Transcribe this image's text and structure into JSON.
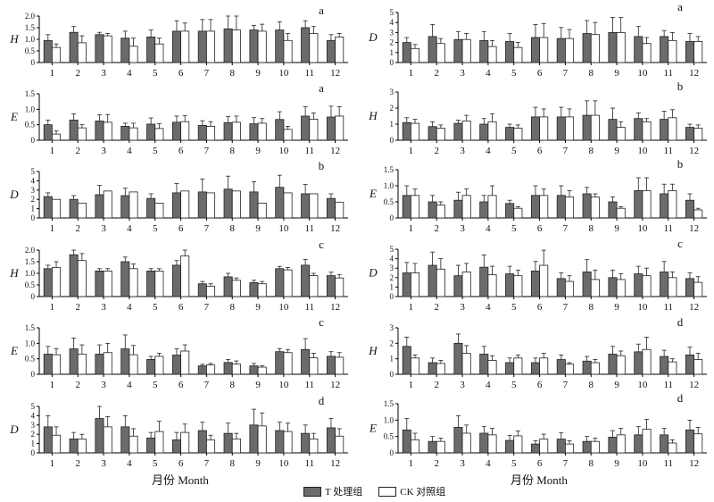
{
  "x_axis_title": "月份 Month",
  "legend": {
    "treatment_label": "T 处理组",
    "control_label": "CK 对照组",
    "treatment_color": "#6b6b6b",
    "control_color": "#ffffff"
  },
  "chart_data": [
    {
      "type": "bar",
      "tag": "a",
      "ylabel": "H",
      "ylim": [
        0,
        2.0
      ],
      "yticks": [
        "0",
        "0.5",
        "1.0",
        "1.5",
        "2.0"
      ],
      "categories": [
        "1",
        "2",
        "3",
        "4",
        "5",
        "6",
        "7",
        "8",
        "9",
        "10",
        "11",
        "12"
      ],
      "series": [
        {
          "name": "T 处理组",
          "values": [
            0.95,
            1.3,
            1.2,
            1.05,
            1.1,
            1.35,
            1.35,
            1.45,
            1.4,
            1.4,
            1.5,
            0.95
          ],
          "errors": [
            0.25,
            0.25,
            0.1,
            0.3,
            0.3,
            0.45,
            0.5,
            0.6,
            0.2,
            0.35,
            0.3,
            0.25
          ]
        },
        {
          "name": "CK 对照组",
          "values": [
            0.65,
            0.85,
            1.15,
            0.7,
            0.8,
            1.35,
            1.35,
            1.4,
            1.35,
            0.95,
            1.25,
            1.1
          ],
          "errors": [
            0.15,
            0.3,
            0.1,
            0.35,
            0.25,
            0.35,
            0.5,
            0.6,
            0.3,
            0.3,
            0.3,
            0.15
          ]
        }
      ]
    },
    {
      "type": "bar",
      "tag": "a",
      "ylabel": "D",
      "ylim": [
        0,
        5
      ],
      "yticks": [
        "0",
        "1",
        "2",
        "3",
        "4",
        "5"
      ],
      "categories": [
        "1",
        "2",
        "3",
        "4",
        "5",
        "6",
        "7",
        "8",
        "9",
        "10",
        "11",
        "12"
      ],
      "series": [
        {
          "name": "T 处理组",
          "values": [
            2.0,
            2.6,
            2.3,
            2.2,
            2.1,
            2.5,
            2.4,
            2.9,
            3.0,
            2.6,
            2.6,
            2.1
          ],
          "errors": [
            0.5,
            1.2,
            0.8,
            0.9,
            0.8,
            1.3,
            1.1,
            1.3,
            1.5,
            1.0,
            0.6,
            0.8
          ]
        },
        {
          "name": "CK 对照组",
          "values": [
            1.4,
            1.9,
            2.3,
            1.6,
            1.5,
            2.5,
            2.4,
            2.8,
            3.0,
            1.9,
            2.2,
            2.1
          ],
          "errors": [
            0.4,
            0.5,
            0.6,
            0.6,
            0.5,
            1.4,
            0.9,
            1.2,
            1.5,
            0.6,
            0.8,
            0.5
          ]
        }
      ]
    },
    {
      "type": "bar",
      "tag": "a",
      "ylabel": "E",
      "ylim": [
        0,
        1.5
      ],
      "yticks": [
        "0",
        "0.5",
        "1.0",
        "1.5"
      ],
      "categories": [
        "1",
        "2",
        "3",
        "4",
        "5",
        "6",
        "7",
        "8",
        "9",
        "10",
        "11",
        "12"
      ],
      "series": [
        {
          "name": "T 处理组",
          "values": [
            0.5,
            0.65,
            0.62,
            0.45,
            0.52,
            0.58,
            0.48,
            0.57,
            0.53,
            0.67,
            0.78,
            0.75
          ],
          "errors": [
            0.15,
            0.2,
            0.2,
            0.1,
            0.2,
            0.2,
            0.15,
            0.2,
            0.2,
            0.25,
            0.3,
            0.35
          ]
        },
        {
          "name": "CK 对照组",
          "values": [
            0.2,
            0.4,
            0.58,
            0.4,
            0.38,
            0.6,
            0.45,
            0.58,
            0.55,
            0.35,
            0.68,
            0.78
          ],
          "errors": [
            0.1,
            0.1,
            0.25,
            0.15,
            0.15,
            0.2,
            0.15,
            0.2,
            0.15,
            0.1,
            0.2,
            0.3
          ]
        }
      ]
    },
    {
      "type": "bar",
      "tag": "b",
      "ylabel": "H",
      "ylim": [
        0,
        3
      ],
      "yticks": [
        "0",
        "1",
        "2",
        "3"
      ],
      "categories": [
        "1",
        "2",
        "3",
        "4",
        "5",
        "6",
        "7",
        "8",
        "9",
        "10",
        "11",
        "12"
      ],
      "series": [
        {
          "name": "T 处理组",
          "values": [
            1.1,
            0.85,
            1.05,
            1.0,
            0.8,
            1.45,
            1.45,
            1.55,
            1.3,
            1.35,
            1.3,
            0.8
          ],
          "errors": [
            0.3,
            0.3,
            0.2,
            0.35,
            0.2,
            0.6,
            0.6,
            0.9,
            0.7,
            0.35,
            0.5,
            0.2
          ]
        },
        {
          "name": "CK 对照组",
          "values": [
            1.05,
            0.75,
            1.2,
            1.15,
            0.75,
            1.45,
            1.45,
            1.55,
            0.8,
            1.15,
            1.4,
            0.75
          ],
          "errors": [
            0.25,
            0.2,
            0.35,
            0.5,
            0.2,
            0.5,
            0.5,
            0.9,
            0.35,
            0.2,
            0.5,
            0.2
          ]
        }
      ]
    },
    {
      "type": "bar",
      "tag": "b",
      "ylabel": "D",
      "ylim": [
        0,
        5
      ],
      "yticks": [
        "0",
        "1",
        "2",
        "3",
        "4",
        "5"
      ],
      "categories": [
        "1",
        "2",
        "3",
        "4",
        "5",
        "6",
        "7",
        "8",
        "9",
        "10",
        "11",
        "12"
      ],
      "series": [
        {
          "name": "T 处理组",
          "values": [
            2.3,
            2.0,
            2.5,
            2.4,
            2.1,
            2.7,
            2.8,
            3.1,
            2.8,
            3.3,
            2.6,
            2.1
          ],
          "errors": [
            0.4,
            0.4,
            1.0,
            0.8,
            0.5,
            1.0,
            1.4,
            1.4,
            1.1,
            1.3,
            1.0,
            0.5
          ]
        },
        {
          "name": "CK 对照组",
          "values": [
            2.0,
            1.6,
            2.9,
            2.8,
            1.6,
            2.9,
            2.7,
            2.9,
            1.6,
            2.7,
            2.6,
            1.7
          ]
        }
      ]
    },
    {
      "type": "bar",
      "tag": "b",
      "ylabel": "E",
      "ylim": [
        0,
        1.5
      ],
      "yticks": [
        "0",
        "0.5",
        "1.0",
        "1.5"
      ],
      "categories": [
        "1",
        "2",
        "3",
        "4",
        "5",
        "6",
        "7",
        "8",
        "9",
        "10",
        "11",
        "12"
      ],
      "series": [
        {
          "name": "T 处理组",
          "values": [
            0.7,
            0.5,
            0.55,
            0.5,
            0.45,
            0.7,
            0.7,
            0.75,
            0.5,
            0.85,
            0.75,
            0.55
          ],
          "errors": [
            0.3,
            0.2,
            0.25,
            0.2,
            0.1,
            0.3,
            0.3,
            0.2,
            0.15,
            0.4,
            0.3,
            0.2
          ]
        },
        {
          "name": "CK 对照组",
          "values": [
            0.7,
            0.4,
            0.7,
            0.7,
            0.3,
            0.7,
            0.65,
            0.65,
            0.3,
            0.85,
            0.85,
            0.25
          ],
          "errors": [
            0.2,
            0.1,
            0.2,
            0.3,
            0.05,
            0.2,
            0.2,
            0.1,
            0.05,
            0.4,
            0.2,
            0.05
          ]
        }
      ]
    },
    {
      "type": "bar",
      "tag": "c",
      "ylabel": "H",
      "ylim": [
        0,
        2.0
      ],
      "yticks": [
        "0",
        "0.5",
        "1.0",
        "1.5",
        "2.0"
      ],
      "categories": [
        "1",
        "2",
        "3",
        "4",
        "5",
        "6",
        "7",
        "8",
        "9",
        "10",
        "11",
        "12"
      ],
      "series": [
        {
          "name": "T 处理组",
          "values": [
            1.2,
            1.8,
            1.1,
            1.5,
            1.1,
            1.35,
            0.55,
            0.85,
            0.6,
            1.2,
            1.35,
            0.9
          ],
          "errors": [
            0.15,
            0.3,
            0.1,
            0.2,
            0.1,
            0.2,
            0.1,
            0.15,
            0.1,
            0.1,
            0.25,
            0.15
          ]
        },
        {
          "name": "CK 对照组",
          "values": [
            1.25,
            1.55,
            1.1,
            1.2,
            1.1,
            1.75,
            0.45,
            0.7,
            0.55,
            1.15,
            0.9,
            0.8
          ],
          "errors": [
            0.25,
            0.3,
            0.1,
            0.2,
            0.1,
            0.3,
            0.1,
            0.1,
            0.1,
            0.1,
            0.1,
            0.15
          ]
        }
      ]
    },
    {
      "type": "bar",
      "tag": "c",
      "ylabel": "D",
      "ylim": [
        0,
        5
      ],
      "yticks": [
        "0",
        "1",
        "2",
        "3",
        "4",
        "5"
      ],
      "categories": [
        "1",
        "2",
        "3",
        "4",
        "5",
        "6",
        "7",
        "8",
        "9",
        "10",
        "11",
        "12"
      ],
      "series": [
        {
          "name": "T 处理组",
          "values": [
            2.5,
            3.3,
            2.2,
            3.1,
            2.4,
            2.7,
            1.9,
            2.6,
            2.0,
            2.4,
            2.6,
            1.9
          ],
          "errors": [
            1.1,
            1.4,
            1.1,
            1.3,
            0.8,
            1.0,
            0.6,
            1.3,
            0.8,
            0.8,
            1.1,
            0.6
          ]
        },
        {
          "name": "CK 对照组",
          "values": [
            2.5,
            2.9,
            2.6,
            2.3,
            2.2,
            3.3,
            1.6,
            1.8,
            1.8,
            2.2,
            2.0,
            1.5
          ],
          "errors": [
            1.0,
            1.1,
            0.9,
            0.9,
            0.6,
            1.6,
            0.6,
            1.0,
            0.6,
            0.8,
            0.6,
            0.6
          ]
        }
      ]
    },
    {
      "type": "bar",
      "tag": "c",
      "ylabel": "E",
      "ylim": [
        0,
        1.5
      ],
      "yticks": [
        "0",
        "0.5",
        "1.0",
        "1.5"
      ],
      "categories": [
        "1",
        "2",
        "3",
        "4",
        "5",
        "6",
        "7",
        "8",
        "9",
        "10",
        "11",
        "12"
      ],
      "series": [
        {
          "name": "T 处理组",
          "values": [
            0.65,
            0.82,
            0.65,
            0.82,
            0.48,
            0.62,
            0.27,
            0.38,
            0.27,
            0.73,
            0.8,
            0.58
          ],
          "errors": [
            0.25,
            0.35,
            0.3,
            0.45,
            0.1,
            0.2,
            0.05,
            0.1,
            0.08,
            0.1,
            0.35,
            0.15
          ]
        },
        {
          "name": "CK 对照组",
          "values": [
            0.63,
            0.65,
            0.7,
            0.63,
            0.58,
            0.75,
            0.3,
            0.33,
            0.23,
            0.7,
            0.53,
            0.55
          ],
          "errors": [
            0.2,
            0.3,
            0.3,
            0.3,
            0.1,
            0.2,
            0.05,
            0.1,
            0.05,
            0.1,
            0.15,
            0.15
          ]
        }
      ]
    },
    {
      "type": "bar",
      "tag": "d",
      "ylabel": "H",
      "ylim": [
        0,
        3
      ],
      "yticks": [
        "0",
        "1",
        "2",
        "3"
      ],
      "categories": [
        "1",
        "2",
        "3",
        "4",
        "5",
        "6",
        "7",
        "8",
        "9",
        "10",
        "11",
        "12"
      ],
      "series": [
        {
          "name": "T 处理组",
          "values": [
            1.8,
            0.75,
            2.0,
            1.3,
            0.75,
            0.75,
            0.95,
            0.85,
            1.3,
            1.45,
            1.15,
            1.25
          ],
          "errors": [
            0.6,
            0.3,
            0.6,
            0.5,
            0.3,
            0.3,
            0.3,
            0.3,
            0.5,
            0.5,
            0.4,
            0.5
          ]
        },
        {
          "name": "CK 对照组",
          "values": [
            1.05,
            0.7,
            1.35,
            0.9,
            1.05,
            1.05,
            0.65,
            0.75,
            1.2,
            1.6,
            0.8,
            0.95
          ],
          "errors": [
            0.2,
            0.2,
            0.5,
            0.3,
            0.2,
            0.3,
            0.1,
            0.2,
            0.3,
            0.8,
            0.2,
            0.4
          ]
        }
      ]
    },
    {
      "type": "bar",
      "tag": "d",
      "ylabel": "D",
      "ylim": [
        0,
        5
      ],
      "yticks": [
        "0",
        "1",
        "2",
        "3",
        "4",
        "5"
      ],
      "categories": [
        "1",
        "2",
        "3",
        "4",
        "5",
        "6",
        "7",
        "8",
        "9",
        "10",
        "11",
        "12"
      ],
      "series": [
        {
          "name": "T 处理组",
          "values": [
            2.8,
            1.5,
            3.7,
            2.8,
            1.6,
            1.4,
            2.4,
            2.1,
            3.0,
            2.4,
            2.1,
            2.7
          ],
          "errors": [
            1.2,
            0.7,
            1.5,
            1.2,
            0.6,
            0.8,
            0.9,
            1.1,
            1.7,
            0.9,
            0.9,
            1.0
          ]
        },
        {
          "name": "CK 对照组",
          "values": [
            1.9,
            1.5,
            2.8,
            1.8,
            2.3,
            2.2,
            1.4,
            1.5,
            2.9,
            2.3,
            1.5,
            1.8
          ],
          "errors": [
            0.9,
            0.5,
            1.1,
            0.8,
            1.1,
            0.9,
            0.5,
            0.6,
            1.4,
            0.9,
            0.6,
            0.8
          ]
        }
      ]
    },
    {
      "type": "bar",
      "tag": "d",
      "ylabel": "E",
      "ylim": [
        0,
        1.5
      ],
      "yticks": [
        "0",
        "0.5",
        "1.0",
        "1.5"
      ],
      "categories": [
        "1",
        "2",
        "3",
        "4",
        "5",
        "6",
        "7",
        "8",
        "9",
        "10",
        "11",
        "12"
      ],
      "series": [
        {
          "name": "T 处理组",
          "values": [
            0.7,
            0.35,
            0.78,
            0.6,
            0.38,
            0.27,
            0.42,
            0.35,
            0.48,
            0.55,
            0.55,
            0.7
          ],
          "errors": [
            0.35,
            0.15,
            0.35,
            0.2,
            0.15,
            0.1,
            0.2,
            0.15,
            0.2,
            0.25,
            0.2,
            0.3
          ]
        },
        {
          "name": "CK 对照组",
          "values": [
            0.4,
            0.35,
            0.6,
            0.55,
            0.52,
            0.42,
            0.27,
            0.35,
            0.55,
            0.72,
            0.3,
            0.58
          ],
          "errors": [
            0.2,
            0.1,
            0.25,
            0.2,
            0.15,
            0.15,
            0.1,
            0.1,
            0.2,
            0.3,
            0.1,
            0.2
          ]
        }
      ]
    }
  ]
}
